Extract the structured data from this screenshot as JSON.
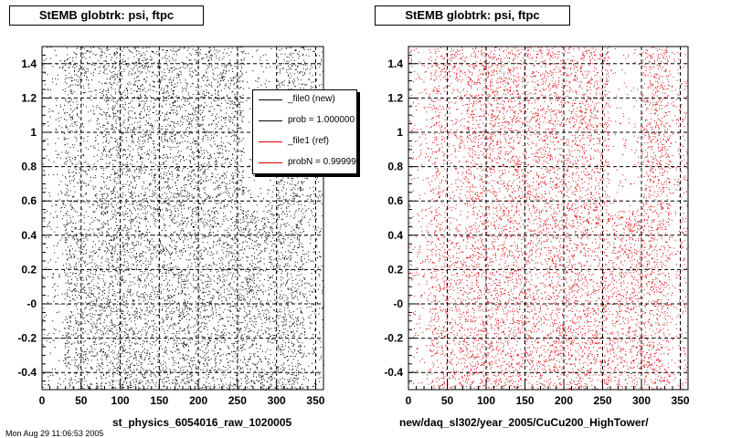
{
  "colors": {
    "new": "#000000",
    "ref": "#dd0000",
    "grid": "#000000"
  },
  "titles": {
    "left": "StEMB globtrk: psi, ftpc",
    "right": "StEMB globtrk: psi, ftpc"
  },
  "captions": {
    "left": "st_physics_6054016_raw_1020005",
    "right": "new/daq_sl302/year_2005/CuCu200_HighTower/"
  },
  "footer": "Mon Aug 29 11:06:53 2005",
  "legend": [
    {
      "label": "_file0 (new)",
      "color": "#000000"
    },
    {
      "label": "prob = 1.000000",
      "color": "#000000"
    },
    {
      "label": "_file1 (ref)",
      "color": "#dd0000"
    },
    {
      "label": "probN = 0.999999",
      "color": "#dd0000"
    }
  ],
  "chart_data": [
    {
      "type": "scatter",
      "title": "StEMB globtrk: psi, ftpc",
      "xlabel": "st_physics_6054016_raw_1020005",
      "xlim": [
        0,
        360
      ],
      "ylim": [
        -0.5,
        1.5
      ],
      "xticks": [
        "0",
        "50",
        "100",
        "150",
        "200",
        "250",
        "300",
        "350"
      ],
      "yticks": [
        "-0.4",
        "-0.2",
        "-0",
        "0.2",
        "0.4",
        "0.6",
        "0.8",
        "1",
        "1.2",
        "1.4"
      ],
      "grid": true,
      "series": [
        {
          "name": "_file0 (new)",
          "color": "#000000",
          "points": 9000
        }
      ]
    },
    {
      "type": "scatter",
      "title": "StEMB globtrk: psi, ftpc",
      "xlabel": "new/daq_sl302/year_2005/CuCu200_HighTower/",
      "xlim": [
        0,
        360
      ],
      "ylim": [
        -0.5,
        1.5
      ],
      "xticks": [
        "0",
        "50",
        "100",
        "150",
        "200",
        "250",
        "300",
        "350"
      ],
      "yticks": [
        "-0.4",
        "-0.2",
        "-0",
        "0.2",
        "0.4",
        "0.6",
        "0.8",
        "1",
        "1.2",
        "1.4"
      ],
      "grid": true,
      "series": [
        {
          "name": "_file1 (ref)",
          "color": "#dd0000",
          "points": 9000
        }
      ]
    }
  ]
}
